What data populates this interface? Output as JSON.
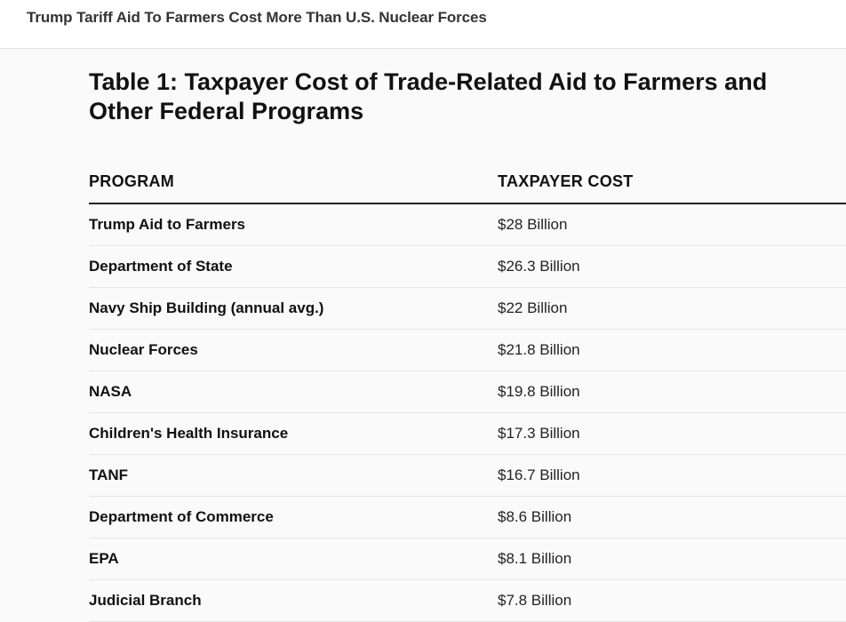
{
  "header": {
    "title": "Trump Tariff Aid To Farmers Cost More Than U.S. Nuclear Forces"
  },
  "table": {
    "title": "Table 1: Taxpayer Cost of Trade-Related Aid to Farmers and Other Federal Programs",
    "columns": [
      "PROGRAM",
      "TAXPAYER COST"
    ],
    "rows": [
      {
        "program": "Trump Aid to Farmers",
        "cost": "$28 Billion"
      },
      {
        "program": "Department of State",
        "cost": "$26.3 Billion"
      },
      {
        "program": "Navy Ship Building (annual avg.)",
        "cost": "$22 Billion"
      },
      {
        "program": "Nuclear Forces",
        "cost": "$21.8 Billion"
      },
      {
        "program": "NASA",
        "cost": "$19.8 Billion"
      },
      {
        "program": "Children's Health Insurance",
        "cost": "$17.3 Billion"
      },
      {
        "program": "TANF",
        "cost": "$16.7 Billion"
      },
      {
        "program": "Department of Commerce",
        "cost": "$8.6 Billion"
      },
      {
        "program": "EPA",
        "cost": "$8.1 Billion"
      },
      {
        "program": "Judicial Branch",
        "cost": "$7.8 Billion"
      }
    ]
  }
}
